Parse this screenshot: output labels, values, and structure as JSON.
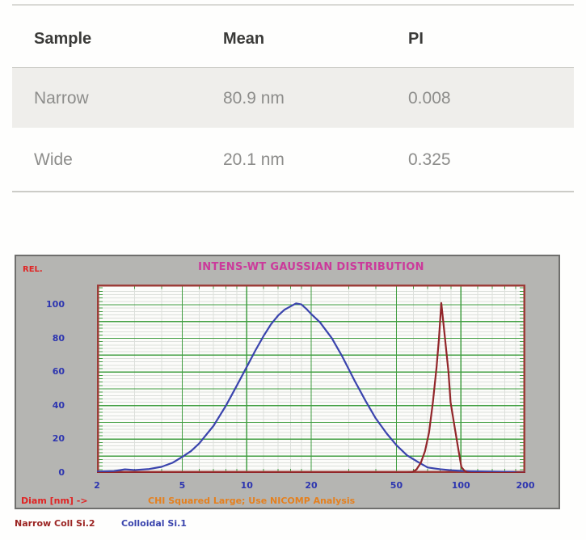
{
  "table": {
    "columns": [
      "Sample",
      "Mean",
      "PI"
    ],
    "rows": [
      {
        "sample": "Narrow",
        "mean": "80.9 nm",
        "pi": "0.008"
      },
      {
        "sample": "Wide",
        "mean": "20.1 nm",
        "pi": "0.325"
      }
    ]
  },
  "chart": {
    "rel_label": "REL.",
    "title": "INTENS-WT GAUSSIAN DISTRIBUTION",
    "x_axis_label": "Diam [nm] ->",
    "status_message": "CHI Squared Large; Use NICOMP Analysis",
    "legend": [
      {
        "label": "Narrow Coll Si.2",
        "color": "#9b2422"
      },
      {
        "label": "Colloidal Si.1",
        "color": "#3a44ad"
      }
    ],
    "colors": {
      "panel_bg": "#b5b5b2",
      "plot_bg": "#fcfcfa",
      "plot_border": "#9c3c38",
      "grid_major": "#419e41",
      "grid_minor": "#dcdfdb",
      "tick_green": "#419e41",
      "axis_text": "#2d35b0",
      "title_text": "#cb3a9b"
    }
  },
  "chart_data": {
    "type": "line",
    "title": "INTENS-WT GAUSSIAN DISTRIBUTION",
    "xlabel": "Diam [nm] ->",
    "ylabel": "REL.",
    "annotation": "CHI Squared Large; Use NICOMP Analysis",
    "x_scale": "log",
    "xlim": [
      2,
      200
    ],
    "ylim": [
      0,
      112
    ],
    "x_ticks": [
      2,
      5,
      10,
      20,
      50,
      100,
      200
    ],
    "y_ticks": [
      0,
      20,
      40,
      60,
      80,
      100
    ],
    "x_major_gridlines": [
      5,
      10,
      20,
      50,
      100
    ],
    "x_minor_gridlines": [
      3,
      4,
      6,
      7,
      8,
      9,
      12,
      14,
      16,
      18,
      30,
      40,
      60,
      70,
      80,
      90,
      120,
      140,
      160,
      180
    ],
    "y_major_step": 10,
    "y_minor_step": 2,
    "grid": true,
    "legend_position": "below",
    "series": [
      {
        "name": "Colloidal Si.1",
        "color": "#3a44ad",
        "points": [
          [
            2,
            0.8
          ],
          [
            2.4,
            1.1
          ],
          [
            2.7,
            2.1
          ],
          [
            3,
            1.7
          ],
          [
            3.5,
            2.3
          ],
          [
            4,
            3.6
          ],
          [
            4.5,
            6
          ],
          [
            5,
            9.5
          ],
          [
            5.5,
            13
          ],
          [
            6,
            17.5
          ],
          [
            7,
            28
          ],
          [
            8,
            40
          ],
          [
            9,
            52
          ],
          [
            10,
            63
          ],
          [
            11,
            73
          ],
          [
            12,
            81.5
          ],
          [
            13,
            88.5
          ],
          [
            14,
            93.5
          ],
          [
            15,
            97
          ],
          [
            16,
            99
          ],
          [
            17,
            100.8
          ],
          [
            18,
            100.2
          ],
          [
            19,
            97.5
          ],
          [
            20,
            94.5
          ],
          [
            22,
            89.5
          ],
          [
            25,
            80
          ],
          [
            28,
            69
          ],
          [
            32,
            54.5
          ],
          [
            36,
            42.5
          ],
          [
            40,
            32.5
          ],
          [
            45,
            23.5
          ],
          [
            50,
            16.5
          ],
          [
            56,
            10.5
          ],
          [
            63,
            6.5
          ],
          [
            70,
            3.2
          ],
          [
            80,
            2.2
          ],
          [
            90,
            1.6
          ],
          [
            100,
            1.2
          ],
          [
            110,
            1
          ],
          [
            120,
            0.9
          ],
          [
            140,
            0.8
          ],
          [
            160,
            0.7
          ],
          [
            175,
            0.6
          ],
          [
            183,
            0.2
          ],
          [
            200,
            0.1
          ]
        ]
      },
      {
        "name": "Narrow Coll Si.2",
        "color": "#92262a",
        "points": [
          [
            2,
            0
          ],
          [
            40,
            0
          ],
          [
            56,
            0
          ],
          [
            59,
            0.4
          ],
          [
            62,
            2
          ],
          [
            65,
            6
          ],
          [
            68,
            13
          ],
          [
            71,
            24
          ],
          [
            74,
            42
          ],
          [
            77,
            63
          ],
          [
            79,
            80
          ],
          [
            81,
            101
          ],
          [
            83.5,
            85
          ],
          [
            87.5,
            60
          ],
          [
            89.5,
            42
          ],
          [
            93,
            29
          ],
          [
            97,
            15
          ],
          [
            100.5,
            3.5
          ],
          [
            103.5,
            1.5
          ],
          [
            107,
            0.3
          ],
          [
            112,
            0
          ],
          [
            200,
            0
          ]
        ]
      }
    ]
  }
}
